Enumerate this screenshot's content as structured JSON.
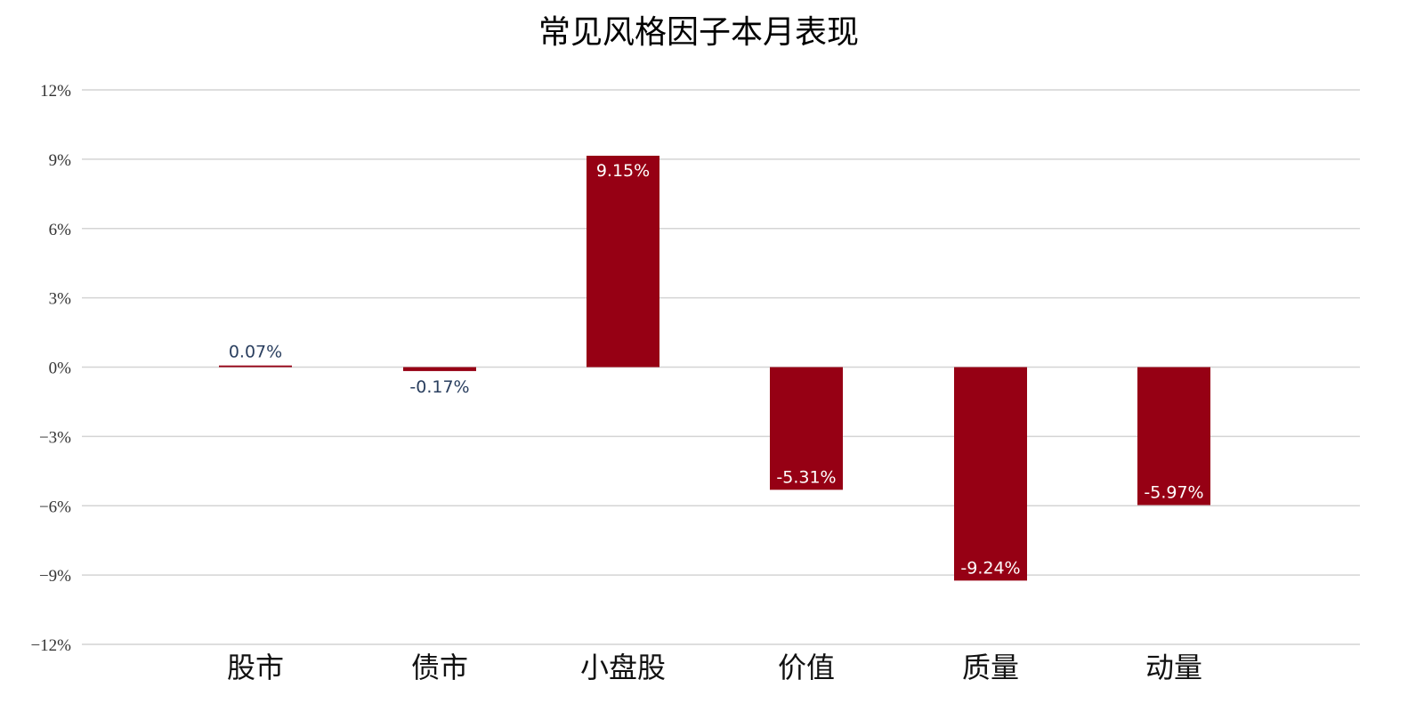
{
  "chart_data": {
    "type": "bar",
    "title": "常见风格因子本月表现",
    "xlabel": "",
    "ylabel": "",
    "categories": [
      "股市",
      "债市",
      "小盘股",
      "价值",
      "质量",
      "动量"
    ],
    "values": [
      0.07,
      -0.17,
      9.15,
      -5.31,
      -9.24,
      -5.97
    ],
    "data_labels": [
      "0.07%",
      "-0.17%",
      "9.15%",
      "-5.31%",
      "-9.24%",
      "-5.97%"
    ],
    "ylim": [
      -12,
      12
    ],
    "yticks": [
      12,
      9,
      6,
      3,
      0,
      -3,
      -6,
      -9,
      -12
    ],
    "ytick_labels": [
      "12%",
      "9%",
      "6%",
      "3%",
      "0%",
      "−3%",
      "−6%",
      "−9%",
      "−12%"
    ],
    "grid": true,
    "legend": "none",
    "colors": {
      "bar": "#960014",
      "grid": "#d4d4d4",
      "label_outside": "#2a3f5f",
      "label_inside": "#ffffff"
    }
  }
}
